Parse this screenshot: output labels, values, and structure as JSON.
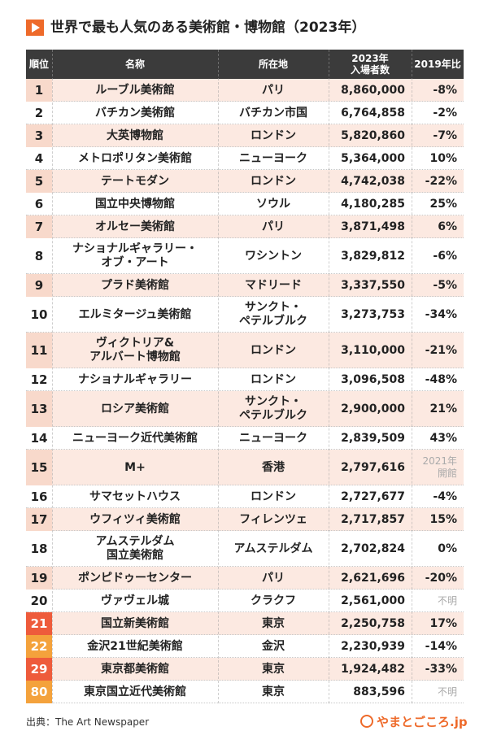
{
  "header": {
    "title": "世界で最も人気のある美術館・博物館（2023年）"
  },
  "table": {
    "columns": [
      "順位",
      "名称",
      "所在地",
      "2023年\n入場者数",
      "2019年比"
    ],
    "rows": [
      {
        "rank": "1",
        "name": "ルーブル美術館",
        "location": "パリ",
        "visitors": "8,860,000",
        "change": "-8%"
      },
      {
        "rank": "2",
        "name": "バチカン美術館",
        "location": "バチカン市国",
        "visitors": "6,764,858",
        "change": "-2%"
      },
      {
        "rank": "3",
        "name": "大英博物館",
        "location": "ロンドン",
        "visitors": "5,820,860",
        "change": "-7%"
      },
      {
        "rank": "4",
        "name": "メトロポリタン美術館",
        "location": "ニューヨーク",
        "visitors": "5,364,000",
        "change": "10%"
      },
      {
        "rank": "5",
        "name": "テートモダン",
        "location": "ロンドン",
        "visitors": "4,742,038",
        "change": "-22%"
      },
      {
        "rank": "6",
        "name": "国立中央博物館",
        "location": "ソウル",
        "visitors": "4,180,285",
        "change": "25%"
      },
      {
        "rank": "7",
        "name": "オルセー美術館",
        "location": "パリ",
        "visitors": "3,871,498",
        "change": "6%"
      },
      {
        "rank": "8",
        "name": "ナショナルギャラリー・\nオブ・アート",
        "location": "ワシントン",
        "visitors": "3,829,812",
        "change": "-6%"
      },
      {
        "rank": "9",
        "name": "プラド美術館",
        "location": "マドリード",
        "visitors": "3,337,550",
        "change": "-5%"
      },
      {
        "rank": "10",
        "name": "エルミタージュ美術館",
        "location": "サンクト・\nペテルブルク",
        "visitors": "3,273,753",
        "change": "-34%"
      },
      {
        "rank": "11",
        "name": "ヴィクトリア&\nアルバート博物館",
        "location": "ロンドン",
        "visitors": "3,110,000",
        "change": "-21%"
      },
      {
        "rank": "12",
        "name": "ナショナルギャラリー",
        "location": "ロンドン",
        "visitors": "3,096,508",
        "change": "-48%"
      },
      {
        "rank": "13",
        "name": "ロシア美術館",
        "location": "サンクト・\nペテルブルク",
        "visitors": "2,900,000",
        "change": "21%"
      },
      {
        "rank": "14",
        "name": "ニューヨーク近代美術館",
        "location": "ニューヨーク",
        "visitors": "2,839,509",
        "change": "43%"
      },
      {
        "rank": "15",
        "name": "M+",
        "location": "香港",
        "visitors": "2,797,616",
        "change": "2021年\n開館"
      },
      {
        "rank": "16",
        "name": "サマセットハウス",
        "location": "ロンドン",
        "visitors": "2,727,677",
        "change": "-4%"
      },
      {
        "rank": "17",
        "name": "ウフィツィ美術館",
        "location": "フィレンツェ",
        "visitors": "2,717,857",
        "change": "15%"
      },
      {
        "rank": "18",
        "name": "アムステルダム\n国立美術館",
        "location": "アムステルダム",
        "visitors": "2,702,824",
        "change": "0%"
      },
      {
        "rank": "19",
        "name": "ポンピドゥーセンター",
        "location": "パリ",
        "visitors": "2,621,696",
        "change": "-20%"
      },
      {
        "rank": "20",
        "name": "ヴァヴェル城",
        "location": "クラクフ",
        "visitors": "2,561,000",
        "change": "不明"
      },
      {
        "rank": "21",
        "name": "国立新美術館",
        "location": "東京",
        "visitors": "2,250,758",
        "change": "17%",
        "rank_color": "#ee5b3b"
      },
      {
        "rank": "22",
        "name": "金沢21世紀美術館",
        "location": "金沢",
        "visitors": "2,230,939",
        "change": "-14%",
        "rank_color": "#f4a23c"
      },
      {
        "rank": "29",
        "name": "東京都美術館",
        "location": "東京",
        "visitors": "1,924,482",
        "change": "-33%",
        "rank_color": "#ee5b3b"
      },
      {
        "rank": "80",
        "name": "東京国立近代美術館",
        "location": "東京",
        "visitors": "883,596",
        "change": "不明",
        "rank_color": "#f4a23c"
      }
    ]
  },
  "footer": {
    "source": "出典：The Art Newspaper",
    "logo": "やまとごころ.jp"
  }
}
